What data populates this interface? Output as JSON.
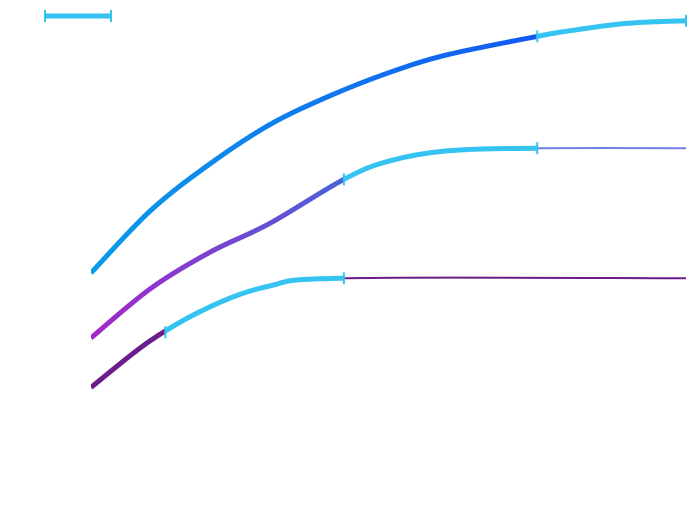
{
  "chart_data": {
    "type": "line",
    "title": "",
    "xlabel": "",
    "ylabel": "",
    "grid": false,
    "xlim": [
      0,
      10
    ],
    "ylim": [
      0,
      10
    ],
    "legend": {
      "placement": "top-left",
      "entries": [
        {
          "name": "",
          "color": "#35c3f2"
        }
      ]
    },
    "series": [
      {
        "points": [
          [
            0,
            4.75
          ],
          [
            1,
            5.95
          ],
          [
            2,
            6.85
          ],
          [
            3,
            7.6
          ],
          [
            4,
            8.15
          ],
          [
            5,
            8.6
          ],
          [
            6,
            8.95
          ],
          [
            7.5,
            9.3
          ],
          [
            8,
            9.4
          ],
          [
            9,
            9.55
          ],
          [
            10,
            9.6
          ]
        ],
        "gradient": [
          "#0a9be8",
          "#1458f2"
        ],
        "highlight": {
          "x_start": 7.5,
          "x_end": 10,
          "color": "#35c3f2"
        }
      },
      {
        "points": [
          [
            0,
            3.5
          ],
          [
            1,
            4.45
          ],
          [
            2,
            5.15
          ],
          [
            3,
            5.7
          ],
          [
            4.25,
            6.55
          ],
          [
            5,
            6.9
          ],
          [
            6,
            7.1
          ],
          [
            7.5,
            7.15
          ],
          [
            10,
            7.15
          ]
        ],
        "gradient": [
          "#a526c8",
          "#4b61d9"
        ],
        "highlight": {
          "x_start": 4.25,
          "x_end": 7.5,
          "color": "#35c3f2"
        },
        "tail_color": "#6f7fe6"
      },
      {
        "points": [
          [
            0,
            2.55
          ],
          [
            1,
            3.45
          ],
          [
            2,
            4.1
          ],
          [
            3,
            4.5
          ],
          [
            4.25,
            4.65
          ],
          [
            10,
            4.65
          ]
        ],
        "gradient": [
          "#6b1d8a",
          "#6b1d8a"
        ],
        "highlight": {
          "x_start": 1.25,
          "x_end": 4.25,
          "color": "#35c3f2"
        },
        "tail_color": "#6b1d8a"
      }
    ]
  }
}
